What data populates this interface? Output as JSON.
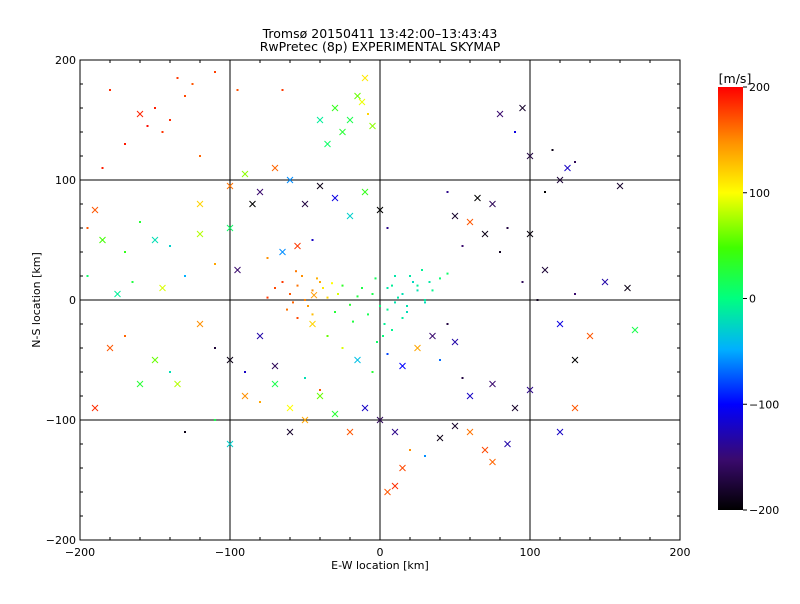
{
  "chart_data": {
    "type": "scatter",
    "title": "Tromsø 20150411 13:42:00–13:43:43",
    "subtitle": "RwPretec (8p) EXPERIMENTAL SKYMAP",
    "xlabel": "E-W location [km]",
    "ylabel": "N-S location [km]",
    "xlim": [
      -200,
      200
    ],
    "ylim": [
      -200,
      200
    ],
    "xticks": [
      -200,
      -100,
      0,
      100,
      200
    ],
    "yticks": [
      -200,
      -100,
      0,
      100,
      200
    ],
    "xtick_labels": [
      "−200",
      "−100",
      "0",
      "100",
      "200"
    ],
    "ytick_labels": [
      "−200",
      "−100",
      "0",
      "100",
      "200"
    ],
    "grid": true,
    "grid_lines": [
      -100,
      0,
      100
    ],
    "marker_types": [
      "x",
      "dot"
    ],
    "colorbar": {
      "label": "[m/s]",
      "range": [
        -200,
        200
      ],
      "ticks": [
        200,
        100,
        0,
        -100,
        -200
      ],
      "tick_labels": [
        "200",
        "100",
        "0",
        "−100",
        "−200"
      ]
    },
    "points": [
      [
        -5,
        5,
        20,
        "dot"
      ],
      [
        -15,
        3,
        25,
        "dot"
      ],
      [
        5,
        -8,
        -5,
        "dot"
      ],
      [
        12,
        2,
        -15,
        "dot"
      ],
      [
        -8,
        -12,
        18,
        "dot"
      ],
      [
        18,
        -5,
        -18,
        "dot"
      ],
      [
        -20,
        -4,
        30,
        "dot"
      ],
      [
        8,
        12,
        -10,
        "dot"
      ],
      [
        -12,
        10,
        22,
        "dot"
      ],
      [
        25,
        8,
        -20,
        "dot"
      ],
      [
        3,
        -20,
        -8,
        "dot"
      ],
      [
        -25,
        12,
        35,
        "dot"
      ],
      [
        15,
        -15,
        -12,
        "dot"
      ],
      [
        -3,
        18,
        15,
        "dot"
      ],
      [
        30,
        -2,
        -22,
        "dot"
      ],
      [
        -30,
        -10,
        28,
        "dot"
      ],
      [
        10,
        20,
        -16,
        "dot"
      ],
      [
        0,
        -5,
        5,
        "dot"
      ],
      [
        22,
        15,
        -25,
        "dot"
      ],
      [
        -18,
        -18,
        25,
        "dot"
      ],
      [
        -45,
        8,
        150,
        "dot"
      ],
      [
        -55,
        12,
        160,
        "dot"
      ],
      [
        -40,
        15,
        140,
        "dot"
      ],
      [
        -60,
        5,
        170,
        "dot"
      ],
      [
        -50,
        0,
        155,
        "dot"
      ],
      [
        -35,
        2,
        120,
        "dot"
      ],
      [
        -65,
        15,
        180,
        "dot"
      ],
      [
        -48,
        -5,
        145,
        "dot"
      ],
      [
        -42,
        18,
        135,
        "dot"
      ],
      [
        -58,
        -2,
        165,
        "dot"
      ],
      [
        -70,
        10,
        175,
        "dot"
      ],
      [
        -38,
        10,
        110,
        "dot"
      ],
      [
        -52,
        20,
        150,
        "dot"
      ],
      [
        -62,
        -8,
        160,
        "dot"
      ],
      [
        -45,
        -12,
        130,
        "dot"
      ],
      [
        -28,
        5,
        90,
        "dot"
      ],
      [
        -32,
        14,
        100,
        "dot"
      ],
      [
        -75,
        2,
        180,
        "dot"
      ],
      [
        -56,
        24,
        158,
        "dot"
      ],
      [
        -44,
        4,
        145,
        "x"
      ],
      [
        5,
        10,
        -15,
        "dot"
      ],
      [
        15,
        5,
        -20,
        "dot"
      ],
      [
        25,
        12,
        -10,
        "dot"
      ],
      [
        35,
        8,
        -5,
        "dot"
      ],
      [
        20,
        20,
        -15,
        "dot"
      ],
      [
        40,
        18,
        5,
        "dot"
      ],
      [
        30,
        0,
        -12,
        "dot"
      ],
      [
        10,
        -2,
        -18,
        "dot"
      ],
      [
        45,
        22,
        10,
        "dot"
      ],
      [
        28,
        25,
        -8,
        "dot"
      ],
      [
        33,
        15,
        -14,
        "dot"
      ],
      [
        18,
        -10,
        -22,
        "dot"
      ],
      [
        8,
        -25,
        -6,
        "dot"
      ],
      [
        2,
        -30,
        2,
        "dot"
      ],
      [
        -2,
        -35,
        10,
        "dot"
      ],
      [
        -65,
        175,
        180,
        "dot"
      ],
      [
        -150,
        160,
        190,
        "dot"
      ],
      [
        -140,
        150,
        185,
        "dot"
      ],
      [
        -155,
        145,
        195,
        "dot"
      ],
      [
        -130,
        170,
        175,
        "dot"
      ],
      [
        -160,
        155,
        188,
        "x"
      ],
      [
        -145,
        140,
        182,
        "dot"
      ],
      [
        -125,
        180,
        170,
        "dot"
      ],
      [
        -110,
        190,
        178,
        "dot"
      ],
      [
        -170,
        130,
        192,
        "dot"
      ],
      [
        -180,
        175,
        185,
        "dot"
      ],
      [
        -135,
        185,
        180,
        "dot"
      ],
      [
        -95,
        175,
        172,
        "dot"
      ],
      [
        -120,
        120,
        165,
        "dot"
      ],
      [
        -185,
        110,
        190,
        "dot"
      ],
      [
        -20,
        150,
        20,
        "x"
      ],
      [
        -30,
        160,
        40,
        "x"
      ],
      [
        -15,
        170,
        60,
        "x"
      ],
      [
        -10,
        185,
        110,
        "x"
      ],
      [
        -5,
        145,
        70,
        "x"
      ],
      [
        -25,
        140,
        30,
        "x"
      ],
      [
        -35,
        130,
        10,
        "x"
      ],
      [
        -8,
        155,
        120,
        "dot"
      ],
      [
        -12,
        165,
        95,
        "x"
      ],
      [
        -40,
        150,
        -10,
        "x"
      ],
      [
        80,
        155,
        -150,
        "x"
      ],
      [
        95,
        160,
        -180,
        "x"
      ],
      [
        100,
        120,
        -170,
        "x"
      ],
      [
        115,
        125,
        -190,
        "dot"
      ],
      [
        120,
        100,
        -175,
        "x"
      ],
      [
        125,
        110,
        -120,
        "x"
      ],
      [
        110,
        90,
        -200,
        "dot"
      ],
      [
        160,
        95,
        -180,
        "x"
      ],
      [
        130,
        115,
        -160,
        "dot"
      ],
      [
        90,
        140,
        -110,
        "dot"
      ],
      [
        50,
        70,
        -180,
        "x"
      ],
      [
        60,
        65,
        170,
        "x"
      ],
      [
        70,
        55,
        -190,
        "x"
      ],
      [
        75,
        80,
        -160,
        "x"
      ],
      [
        55,
        45,
        -150,
        "dot"
      ],
      [
        65,
        85,
        -200,
        "x"
      ],
      [
        85,
        60,
        -170,
        "dot"
      ],
      [
        45,
        90,
        -140,
        "dot"
      ],
      [
        80,
        40,
        -185,
        "dot"
      ],
      [
        100,
        55,
        -195,
        "x"
      ],
      [
        150,
        15,
        -130,
        "x"
      ],
      [
        165,
        10,
        -190,
        "x"
      ],
      [
        95,
        15,
        -160,
        "dot"
      ],
      [
        110,
        25,
        -175,
        "x"
      ],
      [
        130,
        5,
        -150,
        "dot"
      ],
      [
        170,
        -25,
        20,
        "x"
      ],
      [
        140,
        -30,
        170,
        "x"
      ],
      [
        130,
        -50,
        -200,
        "x"
      ],
      [
        120,
        -20,
        -110,
        "x"
      ],
      [
        105,
        0,
        -185,
        "dot"
      ],
      [
        60,
        -80,
        -120,
        "x"
      ],
      [
        75,
        -70,
        -150,
        "x"
      ],
      [
        90,
        -90,
        -180,
        "x"
      ],
      [
        100,
        -75,
        -140,
        "x"
      ],
      [
        55,
        -65,
        -170,
        "dot"
      ],
      [
        120,
        -110,
        -120,
        "x"
      ],
      [
        130,
        -90,
        170,
        "x"
      ],
      [
        -110,
        -40,
        -175,
        "dot"
      ],
      [
        -80,
        -30,
        -130,
        "x"
      ],
      [
        -100,
        -50,
        -190,
        "x"
      ],
      [
        -90,
        -60,
        -120,
        "dot"
      ],
      [
        -70,
        -55,
        -160,
        "x"
      ],
      [
        -120,
        -20,
        150,
        "x"
      ],
      [
        -150,
        -50,
        60,
        "x"
      ],
      [
        -135,
        -70,
        80,
        "x"
      ],
      [
        -180,
        -40,
        170,
        "x"
      ],
      [
        -160,
        -70,
        30,
        "x"
      ],
      [
        -140,
        -60,
        -20,
        "dot"
      ],
      [
        -170,
        -30,
        165,
        "dot"
      ],
      [
        -190,
        -90,
        185,
        "x"
      ],
      [
        -130,
        -110,
        -190,
        "dot"
      ],
      [
        -110,
        -100,
        20,
        "dot"
      ],
      [
        -90,
        -80,
        150,
        "x"
      ],
      [
        -100,
        -120,
        -30,
        "x"
      ],
      [
        -60,
        -110,
        -180,
        "x"
      ],
      [
        -50,
        -100,
        140,
        "x"
      ],
      [
        -40,
        -80,
        60,
        "x"
      ],
      [
        -30,
        -95,
        30,
        "x"
      ],
      [
        -20,
        -110,
        170,
        "x"
      ],
      [
        -10,
        -90,
        -120,
        "x"
      ],
      [
        0,
        -100,
        -160,
        "x"
      ],
      [
        10,
        -110,
        -140,
        "x"
      ],
      [
        20,
        -125,
        150,
        "dot"
      ],
      [
        15,
        -140,
        175,
        "x"
      ],
      [
        10,
        -155,
        185,
        "x"
      ],
      [
        5,
        -160,
        170,
        "x"
      ],
      [
        30,
        -130,
        -60,
        "dot"
      ],
      [
        40,
        -115,
        -190,
        "x"
      ],
      [
        50,
        -105,
        -180,
        "x"
      ],
      [
        60,
        -110,
        160,
        "x"
      ],
      [
        70,
        -125,
        175,
        "x"
      ],
      [
        75,
        -135,
        165,
        "x"
      ],
      [
        85,
        -120,
        -130,
        "x"
      ],
      [
        -150,
        50,
        -20,
        "x"
      ],
      [
        -170,
        40,
        40,
        "dot"
      ],
      [
        -190,
        75,
        170,
        "x"
      ],
      [
        -185,
        50,
        50,
        "x"
      ],
      [
        -160,
        65,
        30,
        "dot"
      ],
      [
        -140,
        45,
        -30,
        "dot"
      ],
      [
        -120,
        55,
        80,
        "x"
      ],
      [
        -100,
        60,
        10,
        "x"
      ],
      [
        -95,
        25,
        -150,
        "x"
      ],
      [
        -110,
        30,
        140,
        "dot"
      ],
      [
        -130,
        20,
        -50,
        "dot"
      ],
      [
        -145,
        10,
        90,
        "x"
      ],
      [
        -165,
        15,
        25,
        "dot"
      ],
      [
        -175,
        5,
        -10,
        "x"
      ],
      [
        -195,
        20,
        10,
        "dot"
      ],
      [
        -195,
        60,
        170,
        "dot"
      ],
      [
        -85,
        80,
        -200,
        "x"
      ],
      [
        -80,
        90,
        -150,
        "x"
      ],
      [
        -70,
        110,
        165,
        "x"
      ],
      [
        -60,
        100,
        -60,
        "x"
      ],
      [
        -50,
        80,
        -170,
        "x"
      ],
      [
        -40,
        95,
        -190,
        "x"
      ],
      [
        -30,
        85,
        -110,
        "x"
      ],
      [
        -20,
        70,
        -30,
        "x"
      ],
      [
        -10,
        90,
        40,
        "x"
      ],
      [
        0,
        75,
        -200,
        "x"
      ],
      [
        5,
        60,
        -140,
        "dot"
      ],
      [
        -55,
        45,
        180,
        "x"
      ],
      [
        -45,
        50,
        -120,
        "dot"
      ],
      [
        -75,
        35,
        150,
        "dot"
      ],
      [
        -65,
        40,
        -60,
        "x"
      ],
      [
        -100,
        95,
        160,
        "x"
      ],
      [
        -120,
        80,
        120,
        "x"
      ],
      [
        -90,
        105,
        70,
        "x"
      ],
      [
        -55,
        -15,
        175,
        "dot"
      ],
      [
        -45,
        -20,
        120,
        "x"
      ],
      [
        -35,
        -30,
        60,
        "dot"
      ],
      [
        -25,
        -40,
        90,
        "dot"
      ],
      [
        -15,
        -50,
        -40,
        "x"
      ],
      [
        -5,
        -60,
        30,
        "dot"
      ],
      [
        5,
        -45,
        -80,
        "dot"
      ],
      [
        15,
        -55,
        -100,
        "x"
      ],
      [
        25,
        -40,
        140,
        "x"
      ],
      [
        35,
        -30,
        -150,
        "x"
      ],
      [
        45,
        -20,
        -170,
        "dot"
      ],
      [
        50,
        -35,
        -130,
        "x"
      ],
      [
        40,
        -50,
        -70,
        "dot"
      ],
      [
        -70,
        -70,
        20,
        "x"
      ],
      [
        -80,
        -85,
        140,
        "dot"
      ],
      [
        -60,
        -90,
        100,
        "x"
      ],
      [
        -50,
        -65,
        -20,
        "dot"
      ],
      [
        -40,
        -75,
        170,
        "dot"
      ]
    ]
  }
}
